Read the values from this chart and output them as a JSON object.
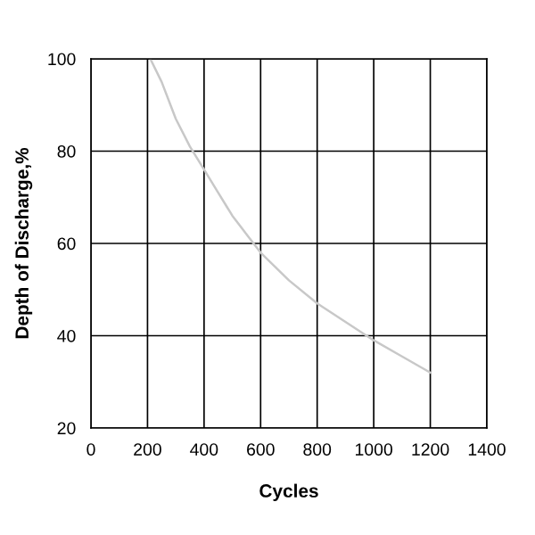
{
  "chart_data": {
    "type": "line",
    "xlabel": "Cycles",
    "ylabel": "Depth of Discharge,%",
    "series": [
      {
        "color": "#c8c8c8",
        "x": [
          210,
          250,
          300,
          350,
          400,
          450,
          500,
          550,
          600,
          700,
          800,
          900,
          1000,
          1100,
          1200
        ],
        "values": [
          100,
          95,
          87,
          81,
          76,
          71,
          66,
          62,
          58,
          52,
          47,
          43,
          39,
          35.5,
          32
        ]
      }
    ],
    "xlim": [
      0,
      1400
    ],
    "ylim": [
      20,
      100
    ],
    "xticks": [
      0,
      200,
      400,
      600,
      800,
      1000,
      1200,
      1400
    ],
    "yticks": [
      20,
      40,
      60,
      80,
      100
    ],
    "grid": true,
    "marker": "none",
    "line_style": "solid",
    "legend": false
  }
}
